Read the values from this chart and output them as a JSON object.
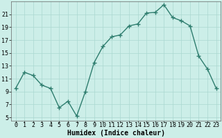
{
  "x": [
    0,
    1,
    2,
    3,
    4,
    5,
    6,
    7,
    8,
    9,
    10,
    11,
    12,
    13,
    14,
    15,
    16,
    17,
    18,
    19,
    20,
    21,
    22,
    23
  ],
  "y": [
    9.5,
    12.0,
    11.5,
    10.0,
    9.5,
    6.5,
    7.5,
    5.2,
    9.0,
    13.5,
    16.0,
    17.5,
    17.8,
    19.2,
    19.5,
    21.2,
    21.3,
    22.5,
    20.5,
    20.0,
    19.2,
    14.5,
    12.5,
    9.5
  ],
  "line_color": "#2e7d6e",
  "marker": "+",
  "markersize": 4,
  "markeredgewidth": 1.0,
  "linewidth": 1.0,
  "bg_color": "#cceee8",
  "grid_color": "#aad8d0",
  "xlabel": "Humidex (Indice chaleur)",
  "xlabel_fontsize": 7,
  "tick_fontsize": 6,
  "ylim": [
    4.5,
    23.0
  ],
  "xlim": [
    -0.5,
    23.5
  ],
  "yticks": [
    5,
    7,
    9,
    11,
    13,
    15,
    17,
    19,
    21
  ],
  "xtick_labels": [
    "0",
    "1",
    "2",
    "3",
    "4",
    "5",
    "6",
    "7",
    "8",
    "9",
    "10",
    "11",
    "12",
    "13",
    "14",
    "15",
    "16",
    "17",
    "18",
    "19",
    "20",
    "21",
    "22",
    "23"
  ]
}
